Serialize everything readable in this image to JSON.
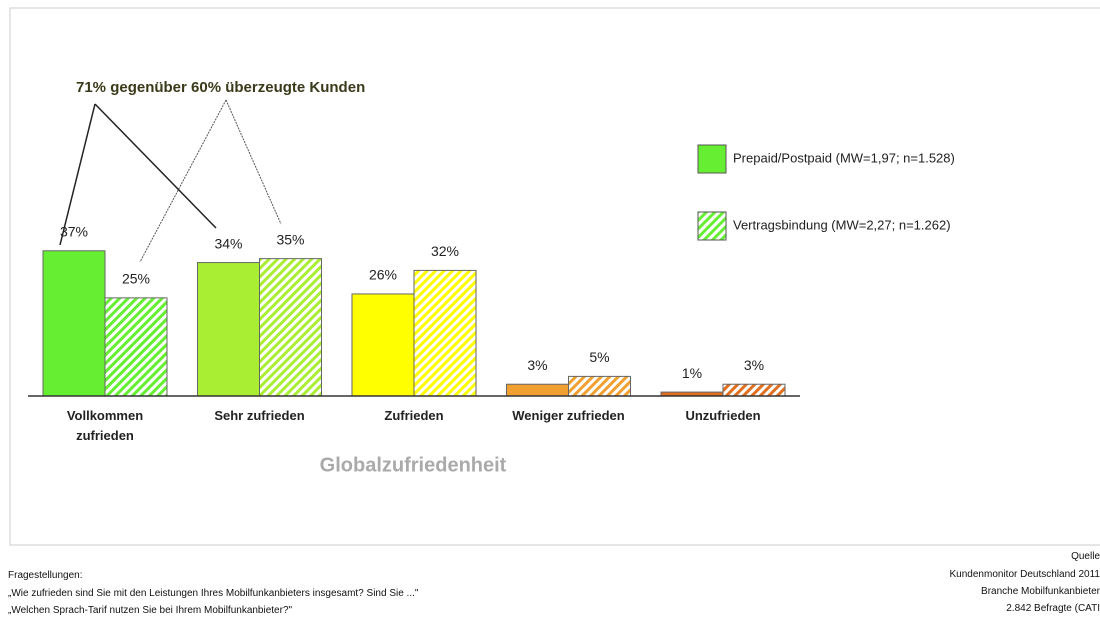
{
  "chart_data": {
    "type": "bar",
    "annotation": "71% gegenüber 60% überzeugte Kunden",
    "x_label": "Globalzufriedenheit",
    "categories": [
      "Vollkommen zufrieden",
      "Sehr zufrieden",
      "Zufrieden",
      "Weniger zufrieden",
      "Unzufrieden"
    ],
    "series": [
      {
        "name": "Prepaid/Postpaid (MW=1,97; n=1.528)",
        "colors": [
          "#66ee33",
          "#aaee33",
          "#ffff00",
          "#f0a030",
          "#e07020"
        ],
        "pattern": "solid",
        "values": [
          37,
          34,
          26,
          3,
          1
        ],
        "value_labels": [
          "37%",
          "34%",
          "26%",
          "3%",
          "1%"
        ]
      },
      {
        "name": "Vertragsbindung (MW=2,27; n=1.262)",
        "colors": [
          "#66ee33",
          "#aaee33",
          "#ffff00",
          "#f0a030",
          "#e07020"
        ],
        "pattern": "hatch",
        "values": [
          25,
          35,
          32,
          5,
          3
        ],
        "value_labels": [
          "25%",
          "35%",
          "32%",
          "5%",
          "3%"
        ]
      }
    ],
    "ylim": [
      0,
      40
    ]
  },
  "footer": {
    "questions": [
      "Fragestellungen:",
      "„Wie zufrieden sind Sie mit den Leistungen Ihres Mobilfunkanbieters insgesamt? Sind Sie ...\"",
      "„Welchen Sprach-Tarif nutzen Sie bei Ihrem Mobilfunkanbieter?\""
    ],
    "source": [
      "Quelle",
      "Kundenmonitor Deutschland 2011",
      "Branche Mobilfunkanbieter",
      "2.842 Befragte (CATI"
    ]
  }
}
